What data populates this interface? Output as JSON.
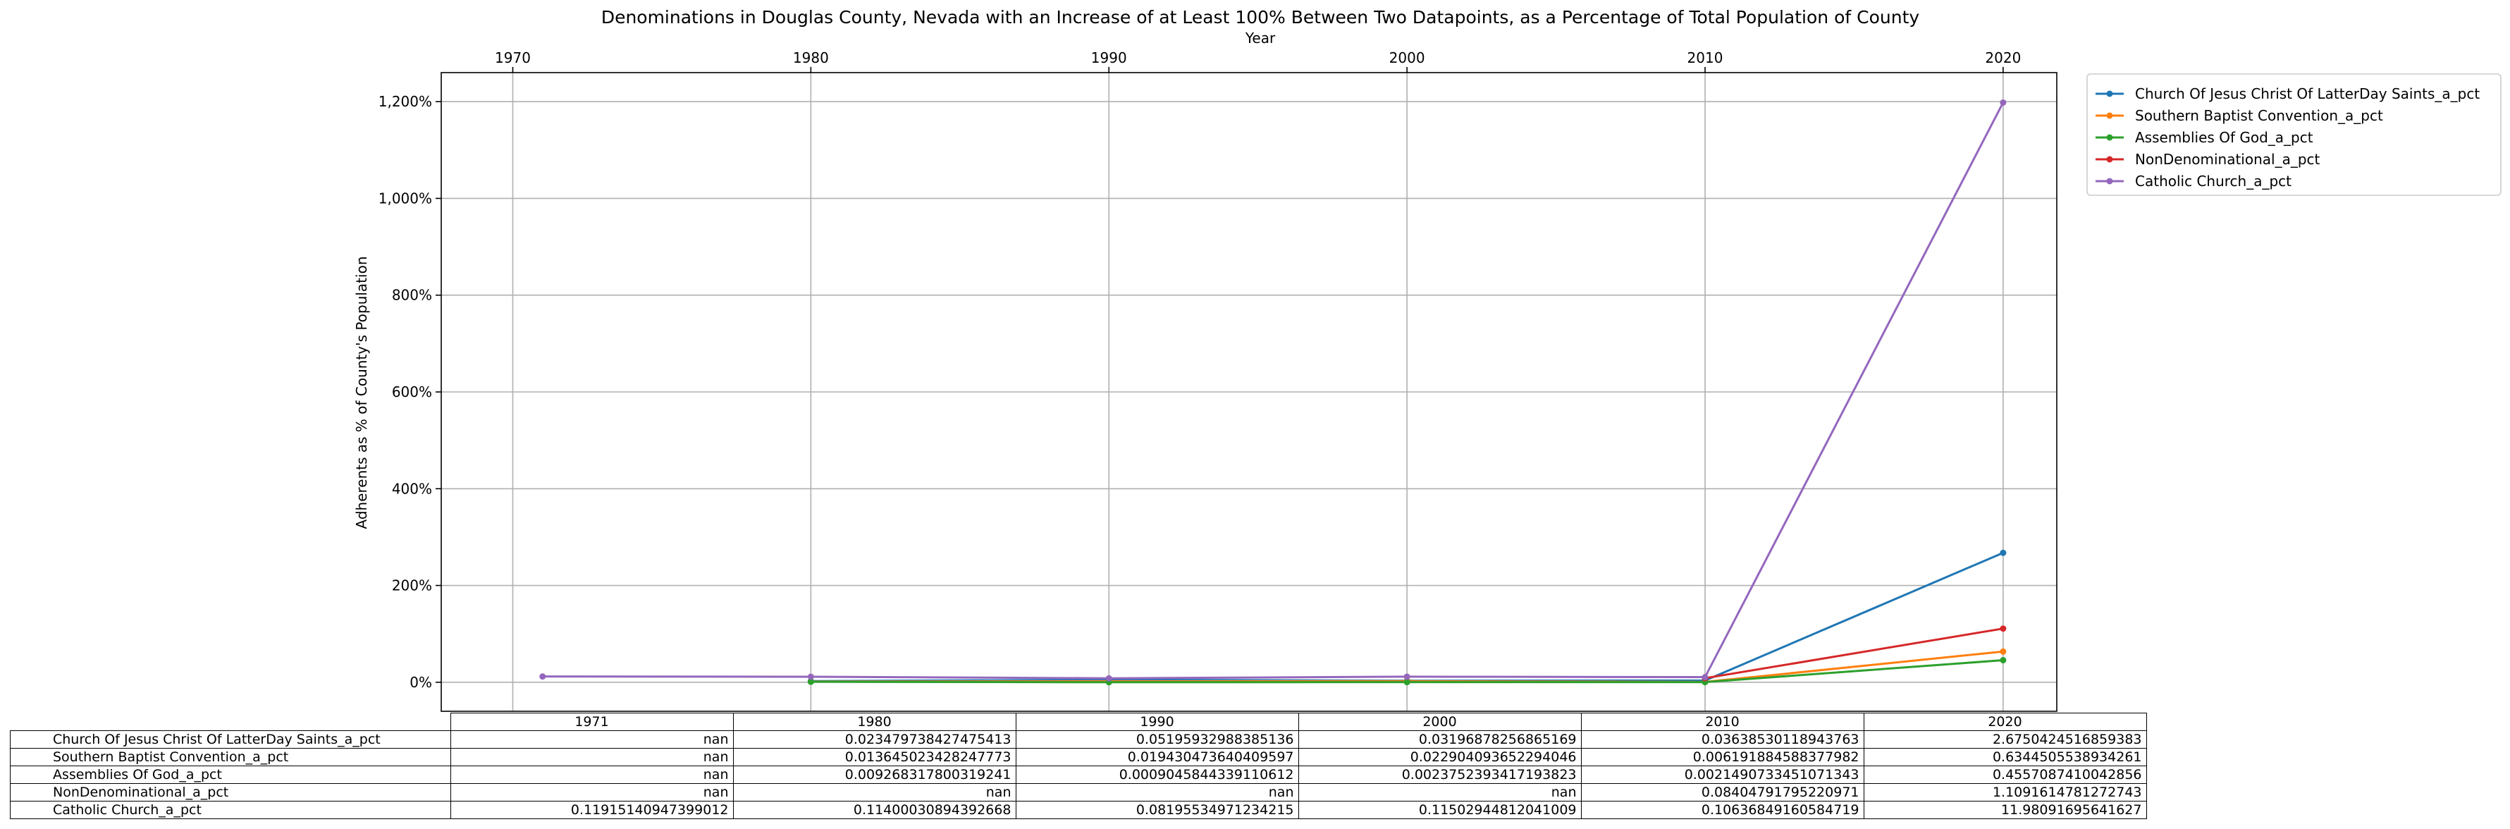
{
  "chart_data": {
    "type": "line",
    "title": "Denominations in Douglas County, Nevada with an Increase of at Least 100% Between Two Datapoints, as a Percentage of Total Population of County",
    "xlabel": "Year",
    "ylabel": "Adherents as % of County's Population",
    "x_ticks": [
      "1970",
      "1980",
      "1990",
      "2000",
      "2010",
      "2020"
    ],
    "y_ticks": [
      "0%",
      "200%",
      "400%",
      "600%",
      "800%",
      "1,000%",
      "1,200%"
    ],
    "xlim": [
      1967.6,
      2021.8
    ],
    "ylim": [
      -0.6,
      12.6
    ],
    "grid": true,
    "legend_position": "outside-top-right",
    "x": [
      1971,
      1980,
      1990,
      2000,
      2010,
      2020
    ],
    "series": [
      {
        "name": "Church Of Jesus Christ Of LatterDay Saints_a_pct",
        "color": "#1f77b4",
        "values": [
          null,
          0.023479738427475413,
          0.05195932988385136,
          0.03196878256865169,
          0.03638530118943763,
          2.6750424516859383
        ]
      },
      {
        "name": "Southern Baptist Convention_a_pct",
        "color": "#ff7f0e",
        "values": [
          null,
          0.013645023428247773,
          0.019430473640409597,
          0.022904093652294046,
          0.006191884588377982,
          0.6344505538934261
        ]
      },
      {
        "name": "Assemblies Of God_a_pct",
        "color": "#2ca02c",
        "values": [
          null,
          0.009268317800319241,
          0.0009045844339110612,
          0.0023752393417193823,
          0.0021490733451071343,
          0.4557087410042856
        ]
      },
      {
        "name": "NonDenominational_a_pct",
        "color": "#d62728",
        "values": [
          null,
          null,
          null,
          null,
          0.08404791795220971,
          1.1091614781272743
        ]
      },
      {
        "name": "Catholic Church_a_pct",
        "color": "#9467bd",
        "values": [
          0.11915140947399012,
          0.11400030894392668,
          0.08195534971234215,
          0.11502944812041009,
          0.10636849160584719,
          11.98091695641627
        ]
      }
    ]
  },
  "table": {
    "columns": [
      "1971",
      "1980",
      "1990",
      "2000",
      "2010",
      "2020"
    ],
    "rows": [
      {
        "label": "Church Of Jesus Christ Of LatterDay Saints_a_pct",
        "cells": [
          "nan",
          "0.023479738427475413",
          "0.05195932988385136",
          "0.03196878256865169",
          "0.03638530118943763",
          "2.6750424516859383"
        ]
      },
      {
        "label": "Southern Baptist Convention_a_pct",
        "cells": [
          "nan",
          "0.013645023428247773",
          "0.019430473640409597",
          "0.022904093652294046",
          "0.006191884588377982",
          "0.6344505538934261"
        ]
      },
      {
        "label": "Assemblies Of God_a_pct",
        "cells": [
          "nan",
          "0.009268317800319241",
          "0.0009045844339110612",
          "0.0023752393417193823",
          "0.0021490733451071343",
          "0.4557087410042856"
        ]
      },
      {
        "label": "NonDenominational_a_pct",
        "cells": [
          "nan",
          "nan",
          "nan",
          "nan",
          "0.08404791795220971",
          "1.1091614781272743"
        ]
      },
      {
        "label": "Catholic Church_a_pct",
        "cells": [
          "0.11915140947399012",
          "0.11400030894392668",
          "0.08195534971234215",
          "0.11502944812041009",
          "0.10636849160584719",
          "11.98091695641627"
        ]
      }
    ]
  }
}
